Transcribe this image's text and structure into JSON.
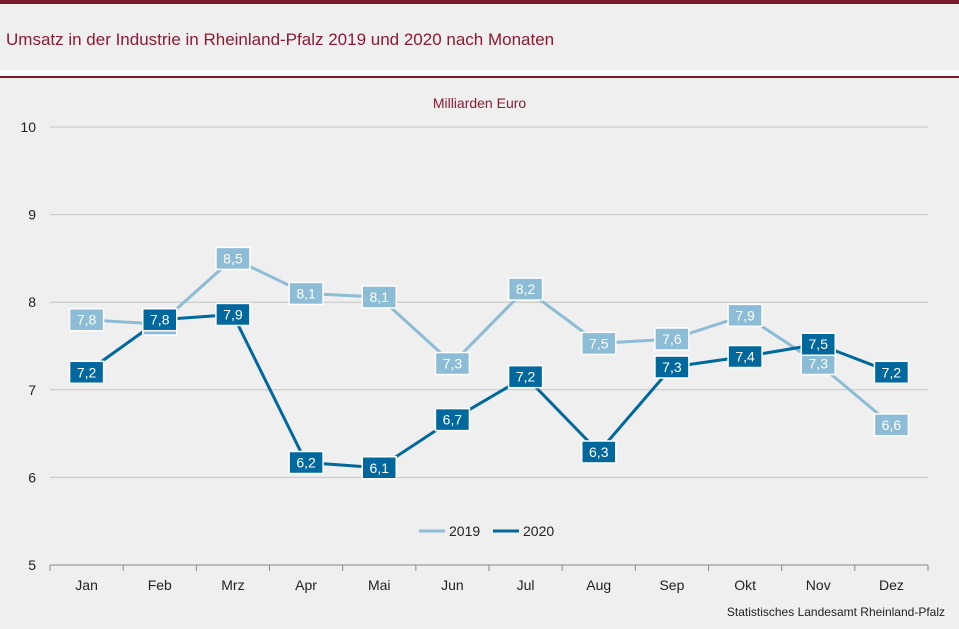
{
  "header": {
    "title": "Umsatz in der Industrie in Rheinland-Pfalz 2019 und 2020 nach Monaten",
    "source": "Statistisches Landesamt  Rheinland-Pfalz"
  },
  "chart_data": {
    "type": "line",
    "title": "Umsatz in der Industrie in Rheinland-Pfalz 2019 und 2020 nach Monaten",
    "ylabel": "Milliarden Euro",
    "xlabel": "",
    "categories": [
      "Jan",
      "Feb",
      "Mrz",
      "Apr",
      "Mai",
      "Jun",
      "Jul",
      "Aug",
      "Sep",
      "Okt",
      "Nov",
      "Dez"
    ],
    "series": [
      {
        "name": "2019",
        "color": "#8dbcd6",
        "values": [
          7.8,
          7.75,
          8.5,
          8.1,
          8.06,
          7.3,
          8.15,
          7.53,
          7.58,
          7.85,
          7.3,
          6.6
        ],
        "labels": [
          "7,8",
          "7,8",
          "8,5",
          "8,1",
          "8,1",
          "7,3",
          "8,2",
          "7,5",
          "7,6",
          "7,9",
          "7,3",
          "6,6"
        ]
      },
      {
        "name": "2020",
        "color": "#00689d",
        "values": [
          7.2,
          7.8,
          7.86,
          6.17,
          6.11,
          6.66,
          7.15,
          6.29,
          7.26,
          7.38,
          7.52,
          7.2
        ],
        "labels": [
          "7,2",
          "7,8",
          "7,9",
          "6,2",
          "6,1",
          "6,7",
          "7,2",
          "6,3",
          "7,3",
          "7,4",
          "7,5",
          "7,2"
        ]
      }
    ],
    "ylim": [
      5,
      10
    ],
    "yticks": [
      "5",
      "6",
      "7",
      "8",
      "9",
      "10"
    ],
    "grid": true,
    "legend": "bottom-center"
  }
}
